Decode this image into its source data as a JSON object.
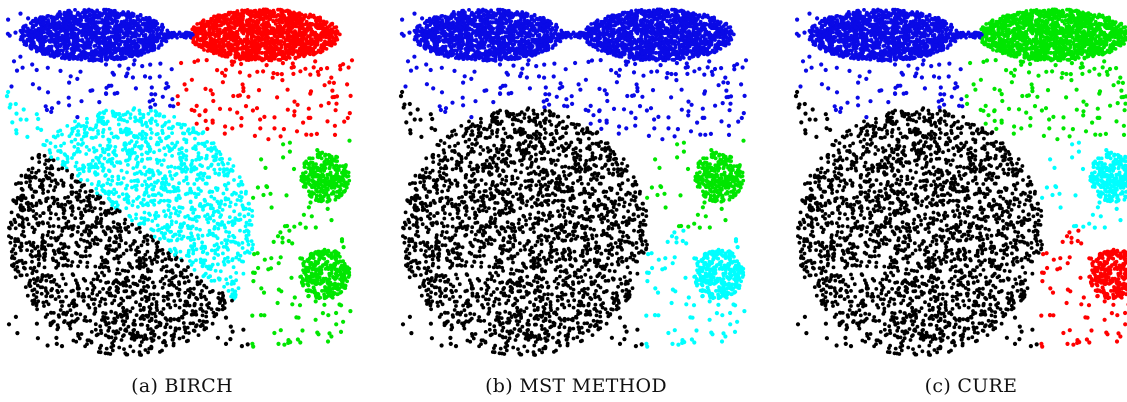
{
  "figure": {
    "panels": [
      {
        "caption": "(a) BIRCH",
        "method": "BIRCH",
        "regions": {
          "top_left_oval": "blue",
          "top_right_oval": "red",
          "upper_middle_scatter": "red",
          "left_scatter": "blue",
          "large_disk_upper": "cyan",
          "large_disk_lower": "black",
          "right_upper_small_circle": "green",
          "right_lower_small_circle": "green",
          "right_scatter_upper": "green",
          "right_scatter_lower": "green",
          "bottom_scatter": "black"
        }
      },
      {
        "caption": "(b) MST METHOD",
        "method": "MST METHOD",
        "regions": {
          "top_left_oval": "blue",
          "top_right_oval": "blue",
          "upper_middle_scatter": "blue",
          "left_scatter": "blue",
          "large_disk_upper": "black",
          "large_disk_lower": "black",
          "right_upper_small_circle": "green",
          "right_lower_small_circle": "cyan",
          "right_scatter_upper": "green",
          "right_scatter_lower": "cyan",
          "bottom_scatter": "black"
        }
      },
      {
        "caption": "(c) CURE",
        "method": "CURE",
        "regions": {
          "top_left_oval": "blue",
          "top_right_oval": "green",
          "upper_middle_scatter": "green",
          "left_scatter": "blue",
          "large_disk_upper": "black",
          "large_disk_lower": "black",
          "right_upper_small_circle": "cyan",
          "right_lower_small_circle": "red",
          "right_scatter_upper": "cyan",
          "right_scatter_lower": "red",
          "bottom_scatter": "black"
        }
      }
    ],
    "colors": {
      "blue": "#0a0ae6",
      "red": "#ff0000",
      "green": "#00e600",
      "cyan": "#00ffff",
      "black": "#000000"
    }
  }
}
